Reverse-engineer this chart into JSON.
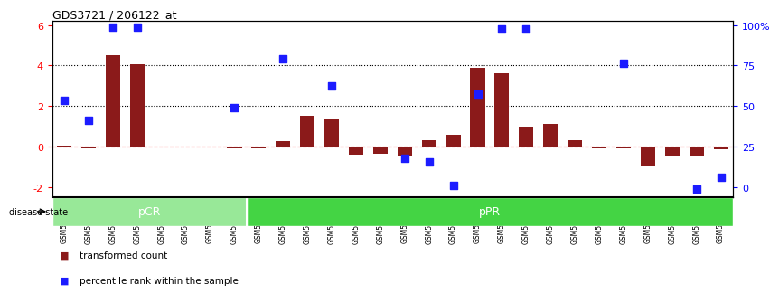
{
  "title": "GDS3721 / 206122_at",
  "samples": [
    "GSM559062",
    "GSM559063",
    "GSM559064",
    "GSM559065",
    "GSM559066",
    "GSM559067",
    "GSM559068",
    "GSM559069",
    "GSM559042",
    "GSM559043",
    "GSM559044",
    "GSM559045",
    "GSM559046",
    "GSM559047",
    "GSM559048",
    "GSM559049",
    "GSM559050",
    "GSM559051",
    "GSM559052",
    "GSM559053",
    "GSM559054",
    "GSM559055",
    "GSM559056",
    "GSM559057",
    "GSM559058",
    "GSM559059",
    "GSM559060",
    "GSM559061"
  ],
  "transformed_count": [
    0.05,
    -0.1,
    4.5,
    4.05,
    -0.05,
    -0.05,
    0.0,
    -0.1,
    -0.08,
    0.25,
    1.5,
    1.4,
    -0.4,
    -0.35,
    -0.45,
    0.3,
    0.6,
    3.9,
    3.6,
    1.0,
    1.1,
    0.3,
    -0.1,
    -0.1,
    -1.0,
    -0.5,
    -0.5,
    -0.15
  ],
  "percentile_rank": [
    2.3,
    1.3,
    5.9,
    5.9,
    null,
    null,
    null,
    1.9,
    null,
    4.35,
    null,
    3.0,
    null,
    null,
    -0.6,
    -0.75,
    -1.9,
    2.6,
    5.8,
    5.8,
    null,
    null,
    null,
    4.1,
    null,
    null,
    -2.1,
    -1.5
  ],
  "pCR_count": 8,
  "pPR_count": 20,
  "ylim": [
    -2.5,
    6.2
  ],
  "y_ticks": [
    -2,
    0,
    2,
    4,
    6
  ],
  "right_yticks": [
    0,
    25,
    50,
    75,
    100
  ],
  "right_yticklabels": [
    "0",
    "25",
    "50",
    "75",
    "100%"
  ],
  "hline_vals": [
    0,
    2,
    4
  ],
  "hline_styles": [
    "--",
    ":",
    ":"
  ],
  "hline_colors": [
    "red",
    "black",
    "black"
  ],
  "bar_color": "#8B1A1A",
  "dot_color": "#1C1CFF",
  "pcr_bg": "#98E898",
  "ppr_bg": "#44D444",
  "pCR_label": "pCR",
  "pPR_label": "pPR",
  "legend_transformed": "transformed count",
  "legend_percentile": "percentile rank within the sample",
  "bar_width": 0.6,
  "dot_size": 28
}
